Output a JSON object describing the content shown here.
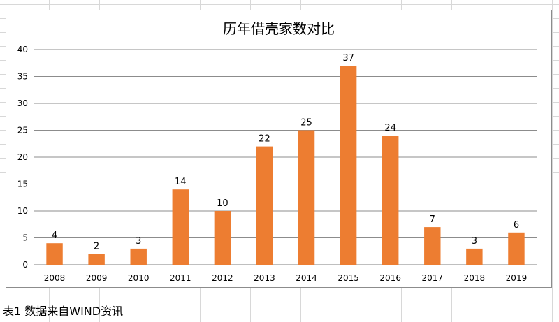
{
  "chart_data": {
    "type": "bar",
    "title": "历年借壳家数对比",
    "categories": [
      "2008",
      "2009",
      "2010",
      "2011",
      "2012",
      "2013",
      "2014",
      "2015",
      "2016",
      "2017",
      "2018",
      "2019"
    ],
    "values": [
      4,
      2,
      3,
      14,
      10,
      22,
      25,
      37,
      24,
      7,
      3,
      6
    ],
    "ylim": [
      0,
      40
    ],
    "yticks": [
      0,
      5,
      10,
      15,
      20,
      25,
      30,
      35,
      40
    ],
    "grid": true,
    "legend": "none",
    "bar_color": "#ed7d31"
  },
  "caption": "表1 数据来自WIND资讯"
}
